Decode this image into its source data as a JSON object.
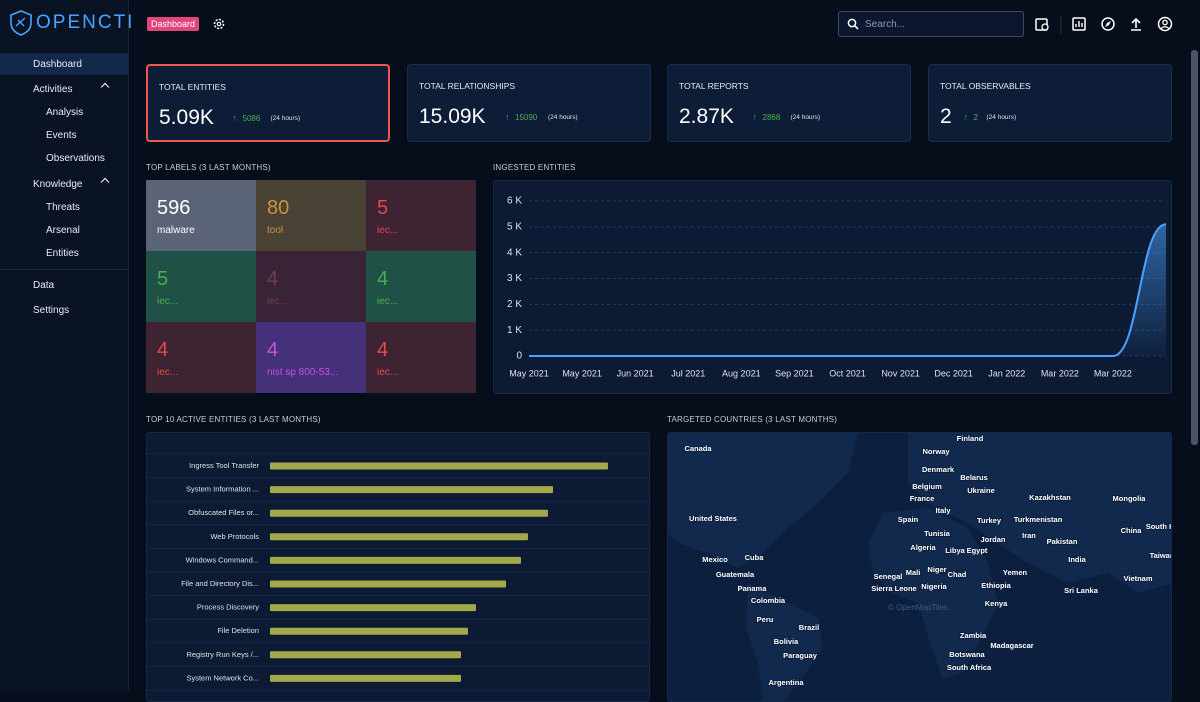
{
  "header": {
    "logo": "OPENCTI",
    "badge": "Dashboard",
    "search": "Search..."
  },
  "sidebar": [
    {
      "label": "Dashboard"
    },
    {
      "label": "Activities",
      "children": [
        "Analysis",
        "Events",
        "Observations"
      ]
    },
    {
      "label": "Knowledge",
      "children": [
        "Threats",
        "Arsenal",
        "Entities"
      ]
    },
    {
      "label": "Data"
    },
    {
      "label": "Settings"
    }
  ],
  "cards": [
    {
      "title": "TOTAL ENTITIES",
      "value": "5.09K",
      "delta": "5086",
      "period": "(24 hours)"
    },
    {
      "title": "TOTAL RELATIONSHIPS",
      "value": "15.09K",
      "delta": "15090",
      "period": "(24 hours)"
    },
    {
      "title": "TOTAL REPORTS",
      "value": "2.87K",
      "delta": "2868",
      "period": "(24 hours)"
    },
    {
      "title": "TOTAL OBSERVABLES",
      "value": "2",
      "delta": "2",
      "period": "(24 hours)"
    }
  ],
  "sections": [
    "TOP LABELS (3 LAST MONTHS)",
    "INGESTED ENTITIES",
    "TOP 10 ACTIVE ENTITIES (3 LAST MONTHS)",
    "TARGETED COUNTRIES (3 LAST MONTHS)"
  ],
  "top_labels": [
    {
      "value": "596",
      "label": "malware",
      "bg": "#5a6476",
      "color": "#ffffff"
    },
    {
      "value": "80",
      "label": "tool",
      "bg": "#4a4234",
      "color": "#c8923e"
    },
    {
      "value": "5",
      "label": "iec...",
      "bg": "#3e2332",
      "color": "#e5484d"
    },
    {
      "value": "5",
      "label": "iec...",
      "bg": "#1f5146",
      "color": "#4caf50"
    },
    {
      "value": "4",
      "label": "iec...",
      "bg": "#392336",
      "color": "#74404f"
    },
    {
      "value": "4",
      "label": "iec...",
      "bg": "#1f5146",
      "color": "#4caf50"
    },
    {
      "value": "4",
      "label": "iec...",
      "bg": "#3e2332",
      "color": "#e5484d"
    },
    {
      "value": "4",
      "label": "nist sp 800-53...",
      "bg": "#45307a",
      "color": "#c451e2"
    },
    {
      "value": "4",
      "label": "iec...",
      "bg": "#3e2332",
      "color": "#e5484d"
    }
  ],
  "chart_data": [
    {
      "type": "line",
      "categories": [
        "May 2021",
        "May 2021",
        "Jun 2021",
        "Jul 2021",
        "Aug 2021",
        "Sep 2021",
        "Oct 2021",
        "Nov 2021",
        "Dec 2021",
        "Jan 2022",
        "Mar 2022",
        "Mar 2022",
        null
      ],
      "series": [
        {
          "name": "Entities",
          "color": "#4aa3ff",
          "values": [
            0,
            0,
            0,
            0,
            0,
            0,
            0,
            0,
            0,
            0,
            0,
            0,
            5100
          ]
        }
      ],
      "ylim": [
        0,
        6000
      ],
      "yticks": [
        0,
        {
          "value": 1000,
          "label": "1 K"
        },
        {
          "value": 2000,
          "label": "2 K"
        },
        {
          "value": 3000,
          "label": "3 K"
        },
        {
          "value": 4000,
          "label": "4 K"
        },
        {
          "value": 5000,
          "label": "5 K"
        },
        {
          "value": 6000,
          "label": "6 K"
        }
      ],
      "grid": true
    },
    {
      "type": "bar",
      "orientation": "horizontal",
      "categories": [
        "Ingress Tool Transfer",
        "System Information ...",
        "Obfuscated Files or...",
        "Web Protocols",
        "Windows Command...",
        "File and Directory Dis...",
        "Process Discovery",
        "File Deletion",
        "Registry Run Keys /...",
        "System Network Co..."
      ],
      "values": [
        338,
        283,
        278,
        258,
        251,
        236,
        206,
        198,
        191,
        191
      ],
      "xlim": [
        0,
        360
      ],
      "color": "#a3a84b"
    }
  ],
  "map": {
    "attribution": "© OpenMapTiles",
    "countries": [
      "Canada",
      "Finland",
      "Norway",
      "Denmark",
      "Belarus",
      "Belgium",
      "Ukraine",
      "Kazakhstan",
      "Mongolia",
      "France",
      "United States",
      "Italy",
      "Spain",
      "Turkey",
      "Turkmenistan",
      "China",
      "Tunisia",
      "Iran",
      "Jordan",
      "Pakistan",
      "Algeria",
      "Libya",
      "Egypt",
      "India",
      "Mexico",
      "Cuba",
      "Niger",
      "Mali",
      "Chad",
      "Yemen",
      "Senegal",
      "Guatemala",
      "Vietnam",
      "Nigeria",
      "Ethiopia",
      "Sierra Leone",
      "Panama",
      "Sri Lanka",
      "Colombia",
      "Kenya",
      "Peru",
      "Brazil",
      "Zambia",
      "Bolivia",
      "Madagascar",
      "Paraguay",
      "Botswana",
      "South Africa",
      "Argentina",
      "South Korea",
      "Taiwan"
    ]
  }
}
